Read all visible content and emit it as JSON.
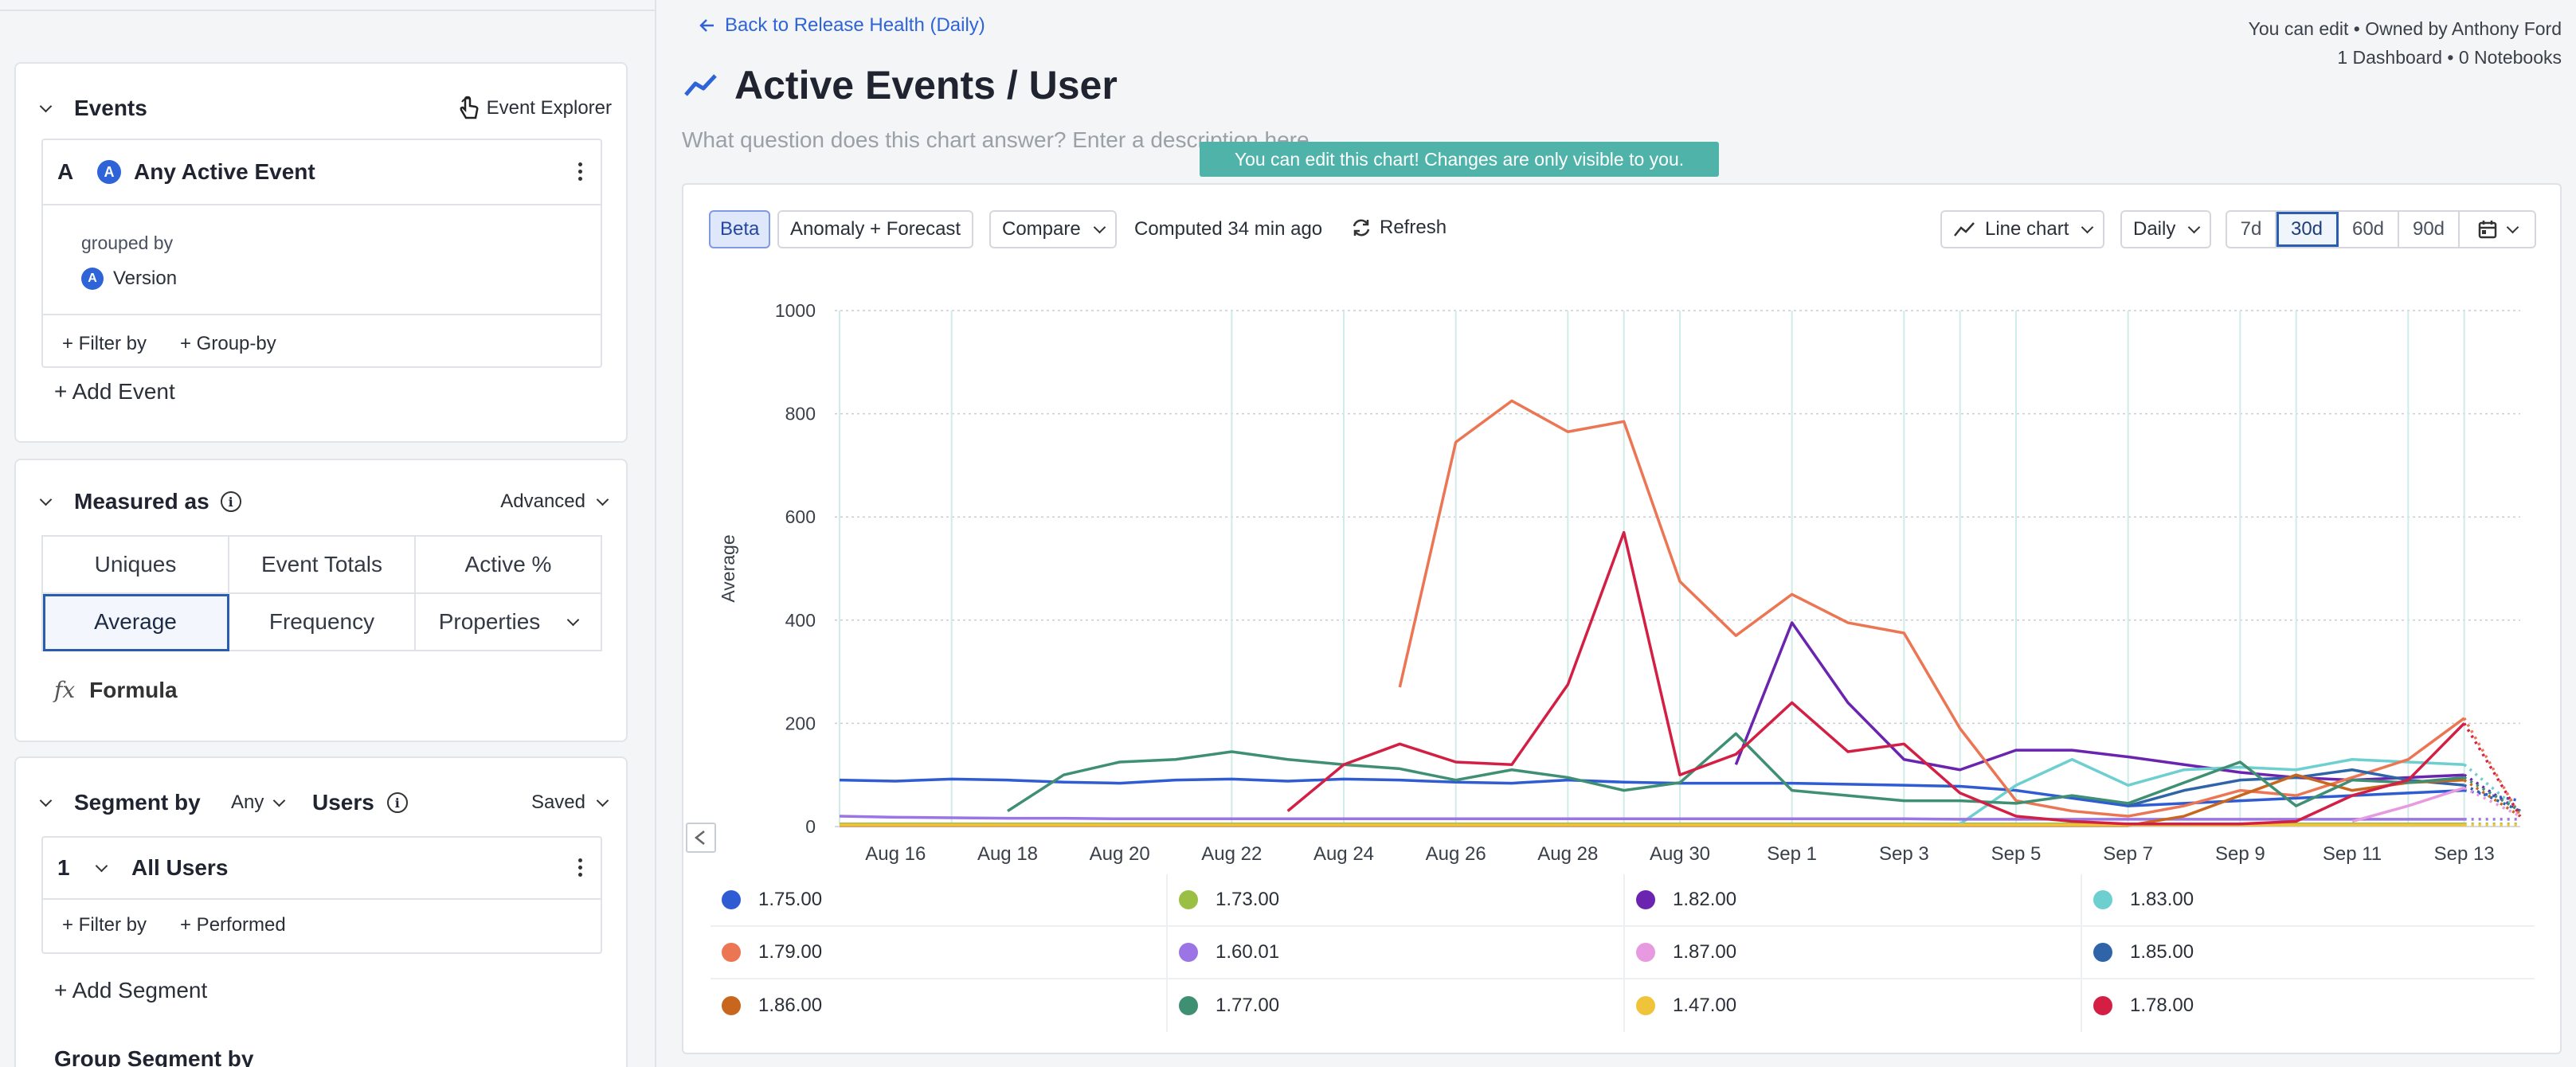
{
  "left": {
    "events": {
      "header": "Events",
      "explorer_label": "Event Explorer",
      "event_letter": "A",
      "event_avatar": "A",
      "event_name": "Any Active Event",
      "grouped_by_label": "grouped by",
      "group_avatar": "A",
      "group_value": "Version",
      "filter_by": "+ Filter by",
      "group_by": "+ Group-by",
      "add_event": "+ Add Event"
    },
    "measured": {
      "header": "Measured as",
      "info": "i",
      "advanced": "Advanced",
      "options": [
        "Uniques",
        "Event Totals",
        "Active %",
        "Average",
        "Frequency",
        "Properties"
      ],
      "selected": "Average",
      "formula_icon": "fx",
      "formula": "Formula"
    },
    "segment": {
      "header": "Segment by",
      "any": "Any",
      "users": "Users",
      "info": "i",
      "saved": "Saved",
      "number": "1",
      "segment_name": "All Users",
      "filter_by": "+ Filter by",
      "performed": "+ Performed",
      "add_segment": "+ Add Segment",
      "group_segment": "Group Segment by"
    }
  },
  "main": {
    "back_link": "Back to Release Health (Daily)",
    "owner_line1": "You can edit • Owned by Anthony Ford",
    "owner_line2": "1 Dashboard • 0 Notebooks",
    "title": "Active Events / User",
    "description_placeholder": "What question does this chart answer? Enter a description here...",
    "toast": "You can edit this chart! Changes are only visible to you."
  },
  "toolbar": {
    "beta": "Beta",
    "anomaly": "Anomaly + Forecast",
    "compare": "Compare",
    "computed": "Computed 34 min ago",
    "refresh": "Refresh",
    "chart_type": "Line chart",
    "interval": "Daily",
    "ranges": [
      "7d",
      "30d",
      "60d",
      "90d"
    ],
    "active_range": "30d"
  },
  "chart_data": {
    "type": "line",
    "ylabel": "Average",
    "ylim": [
      0,
      1000
    ],
    "yticks": [
      0,
      200,
      400,
      600,
      800,
      1000
    ],
    "grid": true,
    "x": [
      "Aug 15",
      "Aug 16",
      "Aug 17",
      "Aug 18",
      "Aug 19",
      "Aug 20",
      "Aug 21",
      "Aug 22",
      "Aug 23",
      "Aug 24",
      "Aug 25",
      "Aug 26",
      "Aug 27",
      "Aug 28",
      "Aug 29",
      "Aug 30",
      "Aug 31",
      "Sep 1",
      "Sep 2",
      "Sep 3",
      "Sep 4",
      "Sep 5",
      "Sep 6",
      "Sep 7",
      "Sep 8",
      "Sep 9",
      "Sep 10",
      "Sep 11",
      "Sep 12",
      "Sep 13",
      "Sep 14"
    ],
    "xtick_labels": [
      "Aug 16",
      "Aug 18",
      "Aug 20",
      "Aug 22",
      "Aug 24",
      "Aug 26",
      "Aug 28",
      "Aug 30",
      "Sep 1",
      "Sep 3",
      "Sep 5",
      "Sep 7",
      "Sep 9",
      "Sep 11",
      "Sep 13"
    ],
    "incomplete_last_point": true,
    "series": [
      {
        "name": "1.75.00",
        "color": "#2f5bd3",
        "values": [
          90,
          88,
          92,
          90,
          86,
          84,
          90,
          92,
          88,
          92,
          90,
          86,
          84,
          90,
          86,
          84,
          84,
          84,
          82,
          80,
          78,
          70,
          55,
          40,
          45,
          50,
          55,
          60,
          65,
          70,
          50
        ]
      },
      {
        "name": "1.73.00",
        "color": "#9bbf45",
        "values": [
          5,
          5,
          5,
          5,
          5,
          5,
          5,
          5,
          5,
          5,
          5,
          5,
          5,
          5,
          5,
          5,
          5,
          5,
          5,
          5,
          5,
          5,
          5,
          5,
          5,
          5,
          5,
          5,
          5,
          5,
          5
        ]
      },
      {
        "name": "1.82.00",
        "color": "#6a24b0",
        "values": [
          null,
          null,
          null,
          null,
          null,
          null,
          null,
          null,
          null,
          null,
          null,
          null,
          null,
          null,
          null,
          null,
          120,
          395,
          240,
          130,
          110,
          148,
          148,
          135,
          120,
          105,
          95,
          90,
          95,
          100,
          30
        ]
      },
      {
        "name": "1.83.00",
        "color": "#6ecfd0",
        "values": [
          null,
          null,
          null,
          null,
          null,
          null,
          null,
          null,
          null,
          null,
          null,
          null,
          null,
          null,
          null,
          null,
          null,
          null,
          null,
          null,
          5,
          80,
          130,
          80,
          110,
          115,
          110,
          130,
          125,
          120,
          30
        ]
      },
      {
        "name": "1.79.00",
        "color": "#ec7553",
        "values": [
          null,
          null,
          null,
          null,
          null,
          null,
          null,
          null,
          null,
          null,
          270,
          745,
          825,
          765,
          785,
          475,
          370,
          450,
          395,
          375,
          190,
          50,
          30,
          20,
          40,
          70,
          60,
          95,
          130,
          210,
          20
        ]
      },
      {
        "name": "1.60.01",
        "color": "#9b74e6",
        "values": [
          20,
          18,
          17,
          16,
          16,
          15,
          15,
          15,
          15,
          15,
          15,
          15,
          15,
          15,
          15,
          15,
          15,
          15,
          15,
          15,
          14,
          14,
          14,
          14,
          14,
          14,
          14,
          14,
          14,
          14,
          14
        ]
      },
      {
        "name": "1.87.00",
        "color": "#e89ae0",
        "values": [
          null,
          null,
          null,
          null,
          null,
          null,
          null,
          null,
          null,
          null,
          null,
          null,
          null,
          null,
          null,
          null,
          null,
          null,
          null,
          null,
          null,
          null,
          null,
          null,
          null,
          null,
          null,
          10,
          40,
          75,
          20
        ]
      },
      {
        "name": "1.85.00",
        "color": "#2f65a8",
        "values": [
          null,
          null,
          null,
          null,
          null,
          null,
          null,
          null,
          null,
          null,
          null,
          null,
          null,
          null,
          null,
          null,
          null,
          null,
          null,
          null,
          null,
          null,
          null,
          40,
          70,
          90,
          95,
          110,
          90,
          80,
          30
        ]
      },
      {
        "name": "1.86.00",
        "color": "#c8661e",
        "values": [
          2,
          2,
          2,
          2,
          2,
          2,
          2,
          2,
          2,
          2,
          2,
          2,
          2,
          2,
          2,
          2,
          2,
          2,
          2,
          2,
          2,
          2,
          2,
          2,
          20,
          60,
          100,
          70,
          85,
          90,
          20
        ]
      },
      {
        "name": "1.77.00",
        "color": "#3f8f73",
        "values": [
          null,
          null,
          null,
          30,
          100,
          125,
          130,
          145,
          130,
          120,
          112,
          90,
          110,
          95,
          70,
          85,
          180,
          70,
          60,
          50,
          50,
          45,
          60,
          45,
          85,
          125,
          40,
          90,
          85,
          95,
          30
        ]
      },
      {
        "name": "1.47.00",
        "color": "#f0c43a",
        "values": [
          3,
          3,
          3,
          3,
          3,
          3,
          3,
          3,
          3,
          3,
          3,
          3,
          3,
          3,
          3,
          3,
          3,
          3,
          3,
          3,
          3,
          3,
          3,
          3,
          3,
          3,
          3,
          3,
          3,
          3,
          3
        ]
      },
      {
        "name": "1.78.00",
        "color": "#d41f45",
        "values": [
          null,
          null,
          null,
          null,
          null,
          null,
          null,
          null,
          30,
          120,
          160,
          125,
          120,
          275,
          570,
          100,
          140,
          240,
          145,
          160,
          65,
          20,
          10,
          5,
          5,
          5,
          10,
          60,
          90,
          200,
          20
        ]
      }
    ]
  },
  "icons": {
    "back": "arrow-left-icon",
    "title": "trend-line-icon",
    "explorer": "cursor-hand-icon",
    "refresh": "refresh-icon",
    "calendar": "calendar-icon"
  }
}
